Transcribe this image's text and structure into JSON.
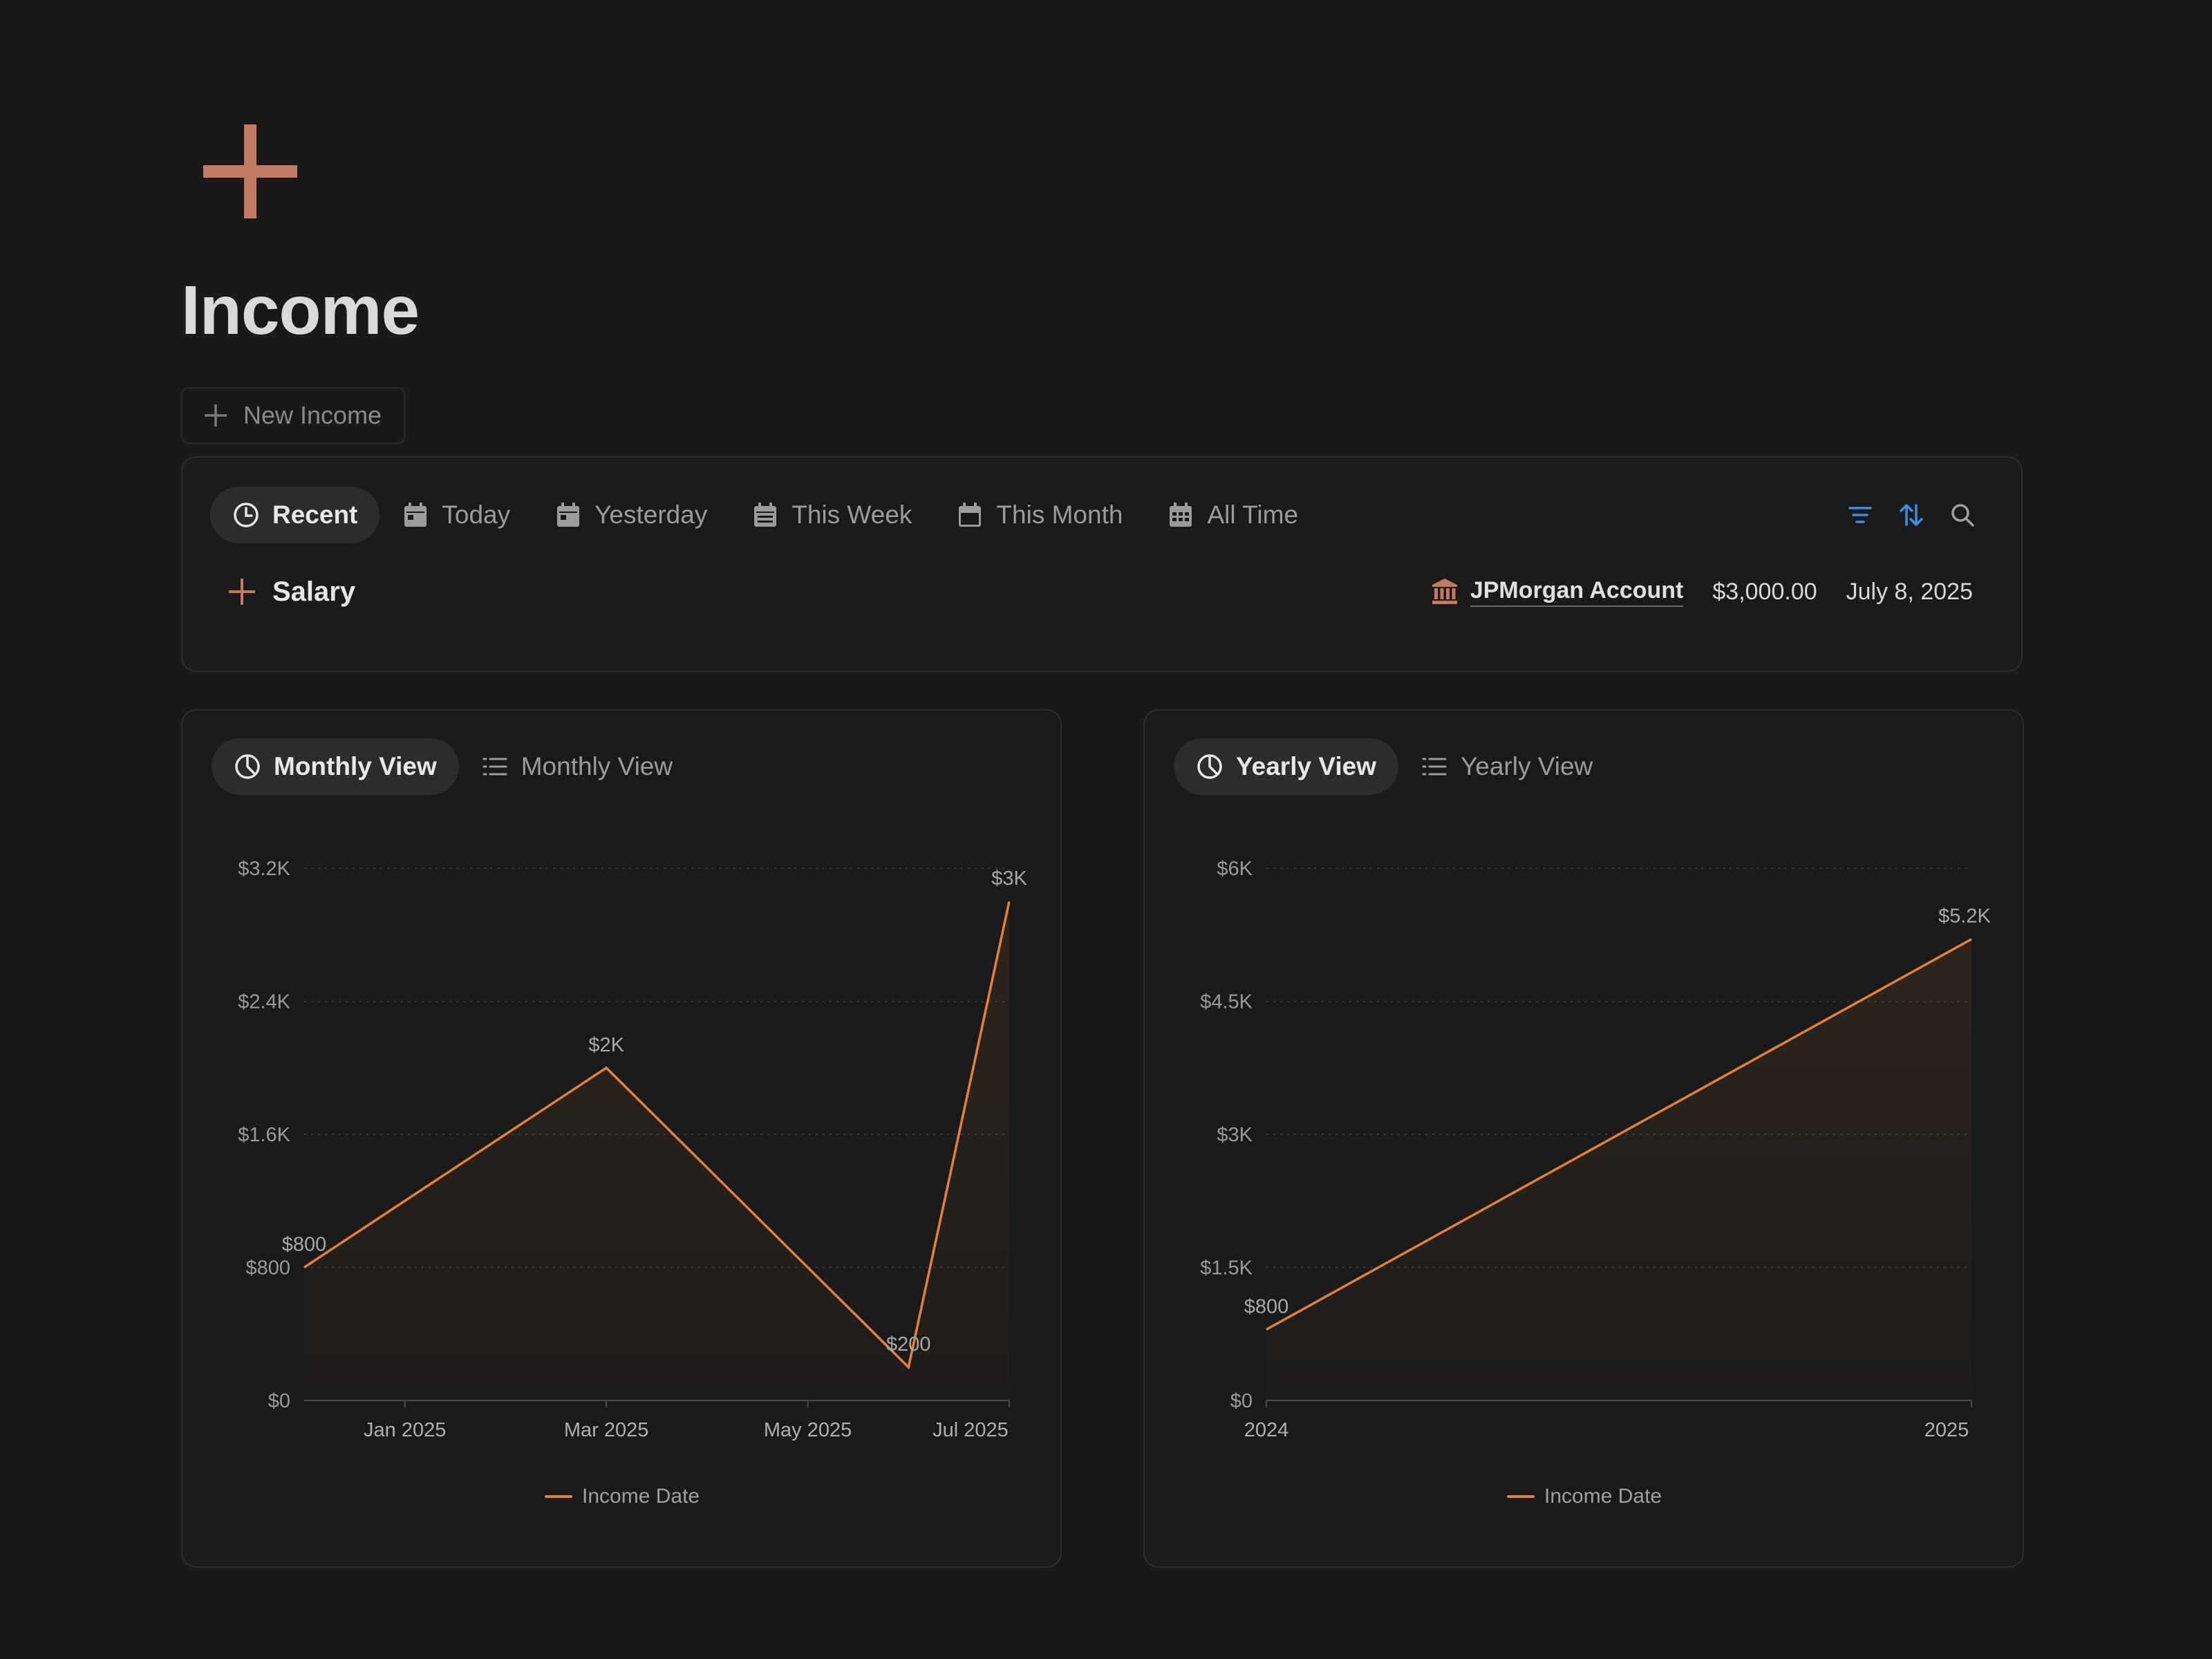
{
  "page": {
    "icon": "plus-icon",
    "title": "Income",
    "new_button_label": "New Income",
    "accent_color": "#c47a60",
    "line_color": "#e0823a",
    "tool_color": "#3b8ee6"
  },
  "recent": {
    "tabs": [
      {
        "label": "Recent",
        "icon": "clock-icon",
        "active": true
      },
      {
        "label": "Today",
        "icon": "calendar-day-icon",
        "active": false
      },
      {
        "label": "Yesterday",
        "icon": "calendar-day-icon",
        "active": false
      },
      {
        "label": "This Week",
        "icon": "calendar-week-icon",
        "active": false
      },
      {
        "label": "This Month",
        "icon": "calendar-month-icon",
        "active": false
      },
      {
        "label": "All Time",
        "icon": "calendar-grid-icon",
        "active": false
      }
    ],
    "tools": [
      "filter-icon",
      "sort-icon",
      "search-icon"
    ],
    "rows": [
      {
        "title": "Salary",
        "account": "JPMorgan Account",
        "amount": "$3,000.00",
        "date": "July 8, 2025"
      }
    ]
  },
  "monthly": {
    "tabs": [
      {
        "label": "Monthly View",
        "icon": "chart-icon",
        "active": true
      },
      {
        "label": "Monthly View",
        "icon": "list-icon",
        "active": false
      }
    ]
  },
  "yearly": {
    "tabs": [
      {
        "label": "Yearly View",
        "icon": "chart-icon",
        "active": true
      },
      {
        "label": "Yearly View",
        "icon": "list-icon",
        "active": false
      }
    ]
  },
  "chart_data": [
    {
      "type": "area",
      "x": [
        "2024-12",
        "2025-03",
        "2025-06",
        "2025-07"
      ],
      "values": [
        800,
        2000,
        200,
        3000
      ],
      "point_labels": [
        "$800",
        "$2K",
        "$200",
        "$3K"
      ],
      "x_ticks": [
        "Jan 2025",
        "Mar 2025",
        "May 2025",
        "Jul 2025"
      ],
      "y_ticks": [
        "$0",
        "$800",
        "$1.6K",
        "$2.4K",
        "$3.2K"
      ],
      "ylim": [
        0,
        3200
      ],
      "legend": "Income Date",
      "legend_position": "bottom",
      "grid": true
    },
    {
      "type": "area",
      "x": [
        "2024",
        "2025"
      ],
      "values": [
        800,
        5200
      ],
      "point_labels": [
        "$800",
        "$5.2K"
      ],
      "x_ticks": [
        "2024",
        "2025"
      ],
      "y_ticks": [
        "$0",
        "$1.5K",
        "$3K",
        "$4.5K",
        "$6K"
      ],
      "ylim": [
        0,
        6000
      ],
      "legend": "Income Date",
      "legend_position": "bottom",
      "grid": true
    }
  ]
}
